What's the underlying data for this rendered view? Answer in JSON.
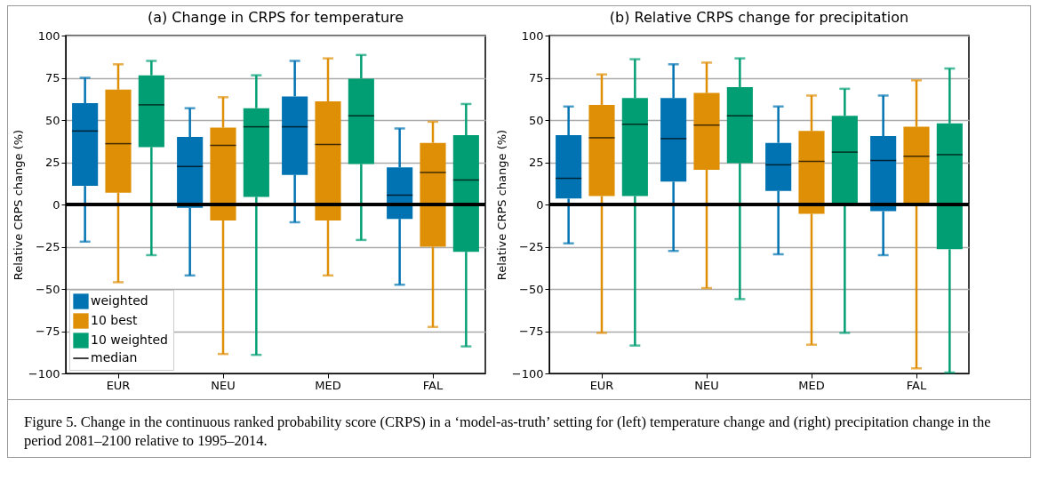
{
  "chart_data": [
    {
      "type": "box",
      "title": "(a) Change in CRPS for temperature",
      "ylabel": "Relative CRPS change (%)",
      "categories": [
        "EUR",
        "NEU",
        "MED",
        "FAL"
      ],
      "ylim": [
        -100,
        100
      ],
      "yticks": [
        -100,
        -75,
        -50,
        -25,
        0,
        25,
        50,
        75,
        100
      ],
      "grid": "y",
      "legend": "bottom left",
      "annotations": [
        "median"
      ],
      "ref_lines": [
        {
          "axis": "y",
          "value": 0,
          "color": "#000000"
        }
      ],
      "series": [
        {
          "name": "weighted",
          "color": "#0173b2",
          "boxes": [
            {
              "low": -22,
              "q1": 11,
              "median": 43.5,
              "q3": 60,
              "high": 75
            },
            {
              "low": -42,
              "q1": -2,
              "median": 22.5,
              "q3": 40,
              "high": 57
            },
            {
              "low": -10.5,
              "q1": 17.5,
              "median": 46,
              "q3": 64,
              "high": 85
            },
            {
              "low": -47.5,
              "q1": -8.5,
              "median": 5.5,
              "q3": 22,
              "high": 45
            }
          ]
        },
        {
          "name": "10 best",
          "color": "#de8f05",
          "boxes": [
            {
              "low": -46,
              "q1": 7,
              "median": 36,
              "q3": 68,
              "high": 83
            },
            {
              "low": -88.5,
              "q1": -9.5,
              "median": 35,
              "q3": 45.5,
              "high": 63.5
            },
            {
              "low": -42,
              "q1": -9.5,
              "median": 35.5,
              "q3": 61,
              "high": 86.5
            },
            {
              "low": -72.5,
              "q1": -25,
              "median": 19,
              "q3": 36.5,
              "high": 49
            }
          ]
        },
        {
          "name": "10 weighted",
          "color": "#029e73",
          "boxes": [
            {
              "low": -30,
              "q1": 34,
              "median": 59,
              "q3": 76.5,
              "high": 85
            },
            {
              "low": -89,
              "q1": 4.5,
              "median": 46,
              "q3": 57,
              "high": 76.5
            },
            {
              "low": -21,
              "q1": 24,
              "median": 52.5,
              "q3": 74.5,
              "high": 88.5
            },
            {
              "low": -84,
              "q1": -28,
              "median": 14.5,
              "q3": 41,
              "high": 59.5
            }
          ]
        }
      ]
    },
    {
      "type": "box",
      "title": "(b) Relative CRPS change for precipitation",
      "ylabel": "Relative CRPS change (%)",
      "categories": [
        "EUR",
        "NEU",
        "MED",
        "FAL"
      ],
      "ylim": [
        -100,
        100
      ],
      "yticks": [
        -100,
        -75,
        -50,
        -25,
        0,
        25,
        50,
        75,
        100
      ],
      "grid": "y",
      "annotations": [
        "Figure 5. Change in the continuous ranked probability score (CRPS) in a ‘model-as-truth’ setting for (left) temperature change and (right) precipitation change in the period 2081–2100 relative to 1995–2014."
      ],
      "ref_lines": [
        {
          "axis": "y",
          "value": 0,
          "color": "#000000"
        }
      ],
      "series": [
        {
          "color": "#0173b2",
          "boxes": [
            {
              "low": -23,
              "q1": 3.5,
              "median": 15.5,
              "q3": 41,
              "high": 58
            },
            {
              "low": -27.5,
              "q1": 13.5,
              "median": 39,
              "q3": 63,
              "high": 83
            },
            {
              "low": -29.5,
              "q1": 8,
              "median": 23.5,
              "q3": 36.5,
              "high": 58
            },
            {
              "low": -30,
              "q1": -4,
              "median": 26,
              "q3": 40.5,
              "high": 64.5
            }
          ]
        },
        {
          "color": "#de8f05",
          "boxes": [
            {
              "low": -76,
              "q1": 5,
              "median": 39.5,
              "q3": 59,
              "high": 77
            },
            {
              "low": -49.5,
              "q1": 20.5,
              "median": 47,
              "q3": 66,
              "high": 84
            },
            {
              "low": -83,
              "q1": -5.5,
              "median": 25.5,
              "q3": 43.5,
              "high": 64.5
            },
            {
              "low": -97,
              "q1": 0.5,
              "median": 28.5,
              "q3": 46,
              "high": 73.5
            }
          ]
        },
        {
          "color": "#029e73",
          "boxes": [
            {
              "low": -83.5,
              "q1": 5,
              "median": 47.5,
              "q3": 63,
              "high": 86
            },
            {
              "low": -56,
              "q1": 24.5,
              "median": 52.5,
              "q3": 69.5,
              "high": 86.5
            },
            {
              "low": -76,
              "q1": 0,
              "median": 31,
              "q3": 52.5,
              "high": 68.5
            },
            {
              "low": -99.5,
              "q1": -26.5,
              "median": 29.5,
              "q3": 48,
              "high": 80.5
            }
          ]
        }
      ]
    }
  ]
}
